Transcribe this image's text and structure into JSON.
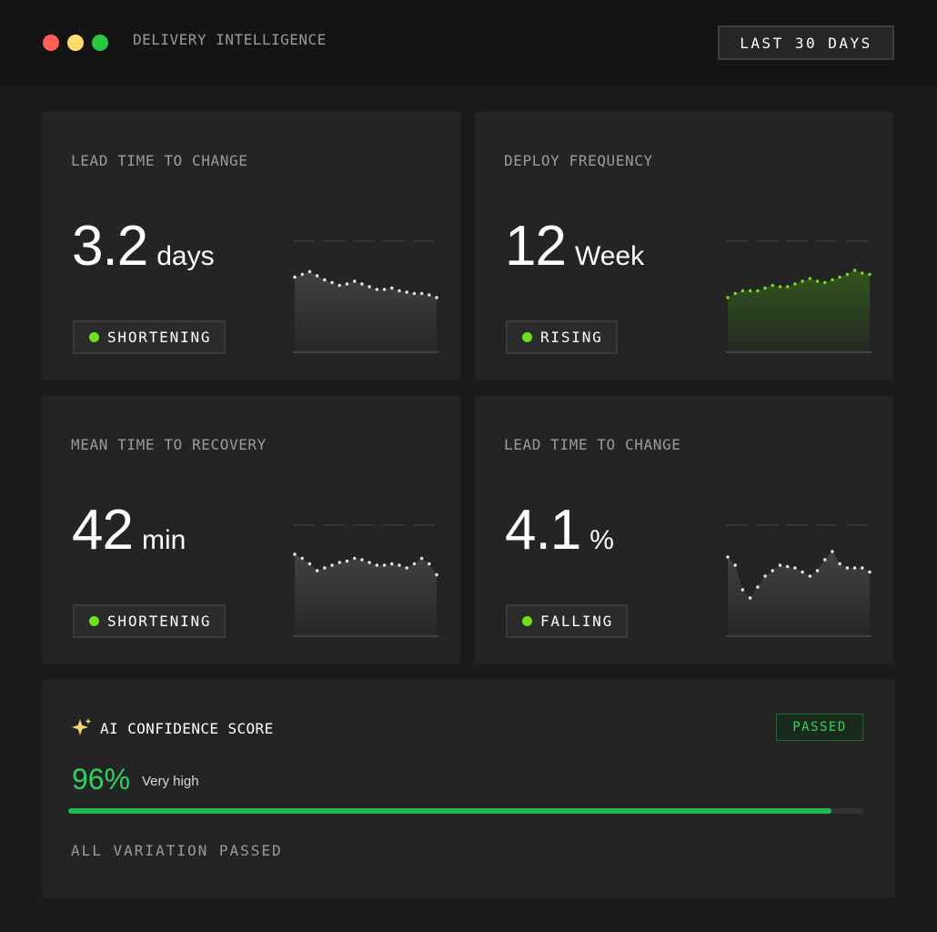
{
  "app": {
    "title": "DELIVERY INTELLIGENCE"
  },
  "toolbar": {
    "range_label": "LAST 30 DAYS"
  },
  "cards": [
    {
      "label": "LEAD TIME TO CHANGE",
      "value": "3.2",
      "unit": "days",
      "badge": "SHORTENING",
      "badge_color": "#6fe11f",
      "line_color": "#e8e8e8",
      "fill_color": "#5a5a5a",
      "trend": [
        55,
        57,
        59,
        56,
        53,
        51,
        49,
        50,
        52,
        50,
        48,
        46,
        46,
        47,
        45,
        44,
        43,
        43,
        42,
        40
      ]
    },
    {
      "label": "DEPLOY FREQUENCY",
      "value": "12",
      "unit": "Week",
      "badge": "RISING",
      "badge_color": "#6fe11f",
      "line_color": "#6fe11f",
      "fill_color": "#3f7f16",
      "trend": [
        40,
        43,
        45,
        45,
        45,
        47,
        49,
        48,
        48,
        50,
        52,
        54,
        52,
        51,
        53,
        55,
        57,
        60,
        58,
        57
      ]
    },
    {
      "label": "MEAN TIME TO RECOVERY",
      "value": "42",
      "unit": "min",
      "badge": "SHORTENING",
      "badge_color": "#6fe11f",
      "line_color": "#e8e8e8",
      "fill_color": "#5a5a5a",
      "trend": [
        60,
        57,
        53,
        48,
        50,
        52,
        54,
        55,
        57,
        56,
        54,
        52,
        52,
        53,
        52,
        50,
        53,
        57,
        53,
        45
      ]
    },
    {
      "label": "LEAD TIME TO CHANGE",
      "value": "4.1",
      "unit": "%",
      "badge": "FALLING",
      "badge_color": "#6fe11f",
      "line_color": "#e8e8e8",
      "fill_color": "#5a5a5a",
      "trend": [
        58,
        52,
        34,
        28,
        36,
        44,
        48,
        52,
        51,
        50,
        47,
        44,
        48,
        56,
        62,
        53,
        50,
        50,
        50,
        47
      ]
    }
  ],
  "ai": {
    "title": "AI CONFIDENCE SCORE",
    "status": "PASSED",
    "score": "96%",
    "score_fraction": 0.96,
    "score_label": "Very high",
    "note": "ALL VARIATION PASSED"
  }
}
